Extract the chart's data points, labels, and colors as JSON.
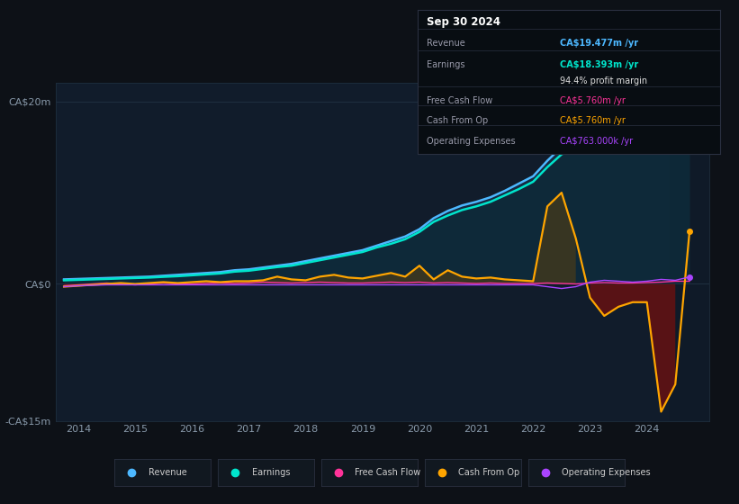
{
  "background_color": "#0d1117",
  "plot_bg_color": "#111c2b",
  "title_box": {
    "date": "Sep 30 2024",
    "rows": [
      {
        "label": "Revenue",
        "value": "CA$19.477m /yr",
        "value_color": "#4db8ff"
      },
      {
        "label": "Earnings",
        "value": "CA$18.393m /yr",
        "value_color": "#00e5cc"
      },
      {
        "label": "",
        "value": "94.4% profit margin",
        "value_color": "#dddddd"
      },
      {
        "label": "Free Cash Flow",
        "value": "CA$5.760m /yr",
        "value_color": "#ff3399"
      },
      {
        "label": "Cash From Op",
        "value": "CA$5.760m /yr",
        "value_color": "#ffa500"
      },
      {
        "label": "Operating Expenses",
        "value": "CA$763.000k /yr",
        "value_color": "#aa44ff"
      }
    ]
  },
  "ylim": [
    -15,
    22
  ],
  "yticks": [
    -15,
    0,
    20
  ],
  "ytick_labels": [
    "-CA$15m",
    "CA$0",
    "CA$20m"
  ],
  "xlabel_years": [
    2014,
    2015,
    2016,
    2017,
    2018,
    2019,
    2020,
    2021,
    2022,
    2023,
    2024
  ],
  "legend": [
    {
      "label": "Revenue",
      "color": "#4db8ff"
    },
    {
      "label": "Earnings",
      "color": "#00e5cc"
    },
    {
      "label": "Free Cash Flow",
      "color": "#ff3399"
    },
    {
      "label": "Cash From Op",
      "color": "#ffa500"
    },
    {
      "label": "Operating Expenses",
      "color": "#aa44ff"
    }
  ],
  "revenue_color": "#4db8ff",
  "earnings_color": "#00e5cc",
  "fcf_color": "#ff3399",
  "cfo_color": "#ffa500",
  "opex_color": "#aa44ff",
  "revenue_fill_color": "#1a3a5c",
  "earnings_fill_color": "#0d3040",
  "cfo_pos_fill": "#5a4010",
  "cfo_neg_fill": "#6b1515",
  "forecast_overlay": "#0a1520"
}
